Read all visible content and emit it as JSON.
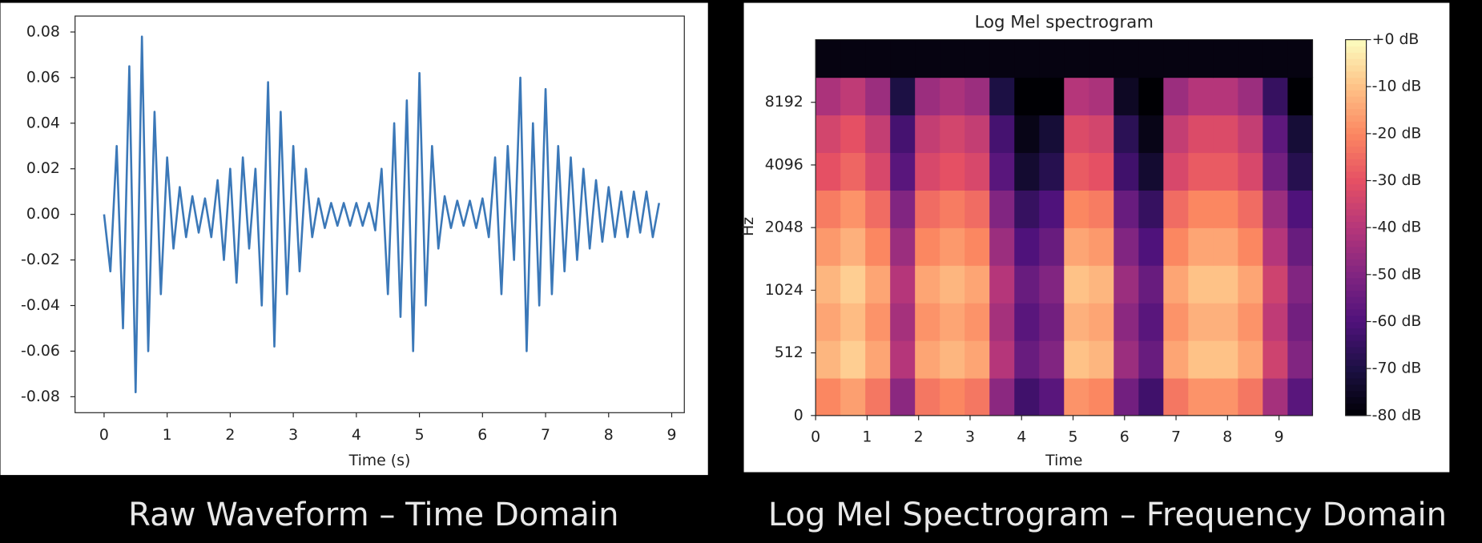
{
  "chart_data": [
    {
      "type": "line",
      "xlabel": "Time (s)",
      "color": "#3b78b8",
      "x": [
        0,
        0.1,
        0.2,
        0.3,
        0.4,
        0.5,
        0.6,
        0.7,
        0.8,
        0.9,
        1.0,
        1.1,
        1.2,
        1.3,
        1.4,
        1.5,
        1.6,
        1.7,
        1.8,
        1.9,
        2.0,
        2.1,
        2.2,
        2.3,
        2.4,
        2.5,
        2.6,
        2.7,
        2.8,
        2.9,
        3.0,
        3.1,
        3.2,
        3.3,
        3.4,
        3.5,
        3.6,
        3.7,
        3.8,
        3.9,
        4.0,
        4.1,
        4.2,
        4.3,
        4.4,
        4.5,
        4.6,
        4.7,
        4.8,
        4.9,
        5.0,
        5.1,
        5.2,
        5.3,
        5.4,
        5.5,
        5.6,
        5.7,
        5.8,
        5.9,
        6.0,
        6.1,
        6.2,
        6.3,
        6.4,
        6.5,
        6.6,
        6.7,
        6.8,
        6.9,
        7.0,
        7.1,
        7.2,
        7.3,
        7.4,
        7.5,
        7.6,
        7.7,
        7.8,
        7.9,
        8.0,
        8.1,
        8.2,
        8.3,
        8.4,
        8.5,
        8.6,
        8.7,
        8.8
      ],
      "values": [
        0,
        -0.025,
        0.03,
        -0.05,
        0.065,
        -0.078,
        0.078,
        -0.06,
        0.045,
        -0.035,
        0.025,
        -0.015,
        0.012,
        -0.01,
        0.008,
        -0.008,
        0.007,
        -0.01,
        0.015,
        -0.02,
        0.02,
        -0.03,
        0.025,
        -0.015,
        0.02,
        -0.04,
        0.058,
        -0.058,
        0.045,
        -0.035,
        0.03,
        -0.025,
        0.02,
        -0.01,
        0.007,
        -0.006,
        0.005,
        -0.005,
        0.005,
        -0.005,
        0.005,
        -0.005,
        0.005,
        -0.007,
        0.02,
        -0.035,
        0.04,
        -0.045,
        0.05,
        -0.06,
        0.062,
        -0.04,
        0.03,
        -0.015,
        0.008,
        -0.006,
        0.006,
        -0.005,
        0.006,
        -0.006,
        0.007,
        -0.01,
        0.025,
        -0.035,
        0.03,
        -0.02,
        0.06,
        -0.06,
        0.04,
        -0.04,
        0.055,
        -0.035,
        0.03,
        -0.025,
        0.025,
        -0.02,
        0.02,
        -0.015,
        0.015,
        -0.012,
        0.012,
        -0.01,
        0.01,
        -0.01,
        0.01,
        -0.008,
        0.01,
        -0.01,
        0.005
      ],
      "xlim": [
        -0.46,
        9.2
      ],
      "ylim": [
        -0.087,
        0.087
      ],
      "xticks": [
        0,
        1,
        2,
        3,
        4,
        5,
        6,
        7,
        8,
        9
      ],
      "yticks": [
        -0.08,
        -0.06,
        -0.04,
        -0.02,
        {
          "value": 0,
          "label": "0.00"
        },
        0.02,
        0.04,
        0.06,
        0.08
      ]
    },
    {
      "type": "heatmap",
      "title": "Log Mel spectrogram",
      "xlabel": "Time",
      "ylabel": "Hz",
      "colormap": "magma",
      "yscale": "symlog",
      "linthresh": 512,
      "xlim": [
        0,
        9.65
      ],
      "ylim": [
        0,
        16384
      ],
      "zlim": [
        -80,
        0
      ],
      "xticks": [
        0,
        1,
        2,
        3,
        4,
        5,
        6,
        7,
        8,
        9
      ],
      "yticks": [
        0,
        512,
        1024,
        2048,
        4096,
        8192
      ],
      "zticks": [
        {
          "value": -80,
          "label": "-80 dB"
        },
        {
          "value": -70,
          "label": "-70 dB"
        },
        {
          "value": -60,
          "label": "-60 dB"
        },
        {
          "value": -50,
          "label": "-50 dB"
        },
        {
          "value": -40,
          "label": "-40 dB"
        },
        {
          "value": -30,
          "label": "-30 dB"
        },
        {
          "value": -20,
          "label": "-20 dB"
        },
        {
          "value": -10,
          "label": "-10 dB"
        },
        {
          "value": 0,
          "label": "+0 dB"
        }
      ],
      "z": [
        [
          -20,
          -16,
          -23,
          -48,
          -23,
          -20,
          -23,
          -48,
          -63,
          -58,
          -18,
          -20,
          -53,
          -63,
          -23,
          -18,
          -18,
          -23,
          -43,
          -58
        ],
        [
          -12,
          -8,
          -15,
          -40,
          -15,
          -12,
          -15,
          -40,
          -55,
          -50,
          -10,
          -12,
          -45,
          -55,
          -15,
          -10,
          -10,
          -15,
          -35,
          -50
        ],
        [
          -15,
          -11,
          -18,
          -43,
          -18,
          -15,
          -18,
          -43,
          -58,
          -53,
          -13,
          -15,
          -48,
          -58,
          -18,
          -13,
          -13,
          -18,
          -38,
          -53
        ],
        [
          -12,
          -8,
          -15,
          -40,
          -15,
          -12,
          -15,
          -40,
          -55,
          -50,
          -10,
          -12,
          -45,
          -55,
          -15,
          -10,
          -10,
          -15,
          -35,
          -50
        ],
        [
          -17,
          -13,
          -20,
          -45,
          -20,
          -17,
          -20,
          -45,
          -60,
          -55,
          -15,
          -17,
          -50,
          -60,
          -20,
          -15,
          -15,
          -20,
          -40,
          -55
        ],
        [
          -22,
          -18,
          -25,
          -50,
          -25,
          -22,
          -25,
          -50,
          -65,
          -60,
          -20,
          -22,
          -55,
          -65,
          -25,
          -20,
          -20,
          -25,
          -45,
          -60
        ],
        [
          -30,
          -26,
          -33,
          -58,
          -33,
          -30,
          -33,
          -58,
          -73,
          -68,
          -28,
          -30,
          -63,
          -73,
          -33,
          -28,
          -28,
          -33,
          -53,
          -68
        ],
        [
          -34,
          -30,
          -37,
          -62,
          -37,
          -34,
          -37,
          -62,
          -77,
          -72,
          -32,
          -34,
          -67,
          -77,
          -37,
          -32,
          -32,
          -37,
          -57,
          -72
        ],
        [
          -42,
          -38,
          -45,
          -70,
          -45,
          -42,
          -45,
          -70,
          -80,
          -80,
          -40,
          -42,
          -75,
          -80,
          -45,
          -40,
          -40,
          -45,
          -65,
          -80
        ],
        [
          -78,
          -78,
          -78,
          -78,
          -78,
          -78,
          -78,
          -78,
          -78,
          -78,
          -78,
          -78,
          -78,
          -78,
          -78,
          -78,
          -78,
          -78,
          -78,
          -78
        ]
      ]
    }
  ],
  "captions": [
    "Raw Waveform – Time Domain",
    "Log Mel Spectrogram – Frequency Domain"
  ]
}
